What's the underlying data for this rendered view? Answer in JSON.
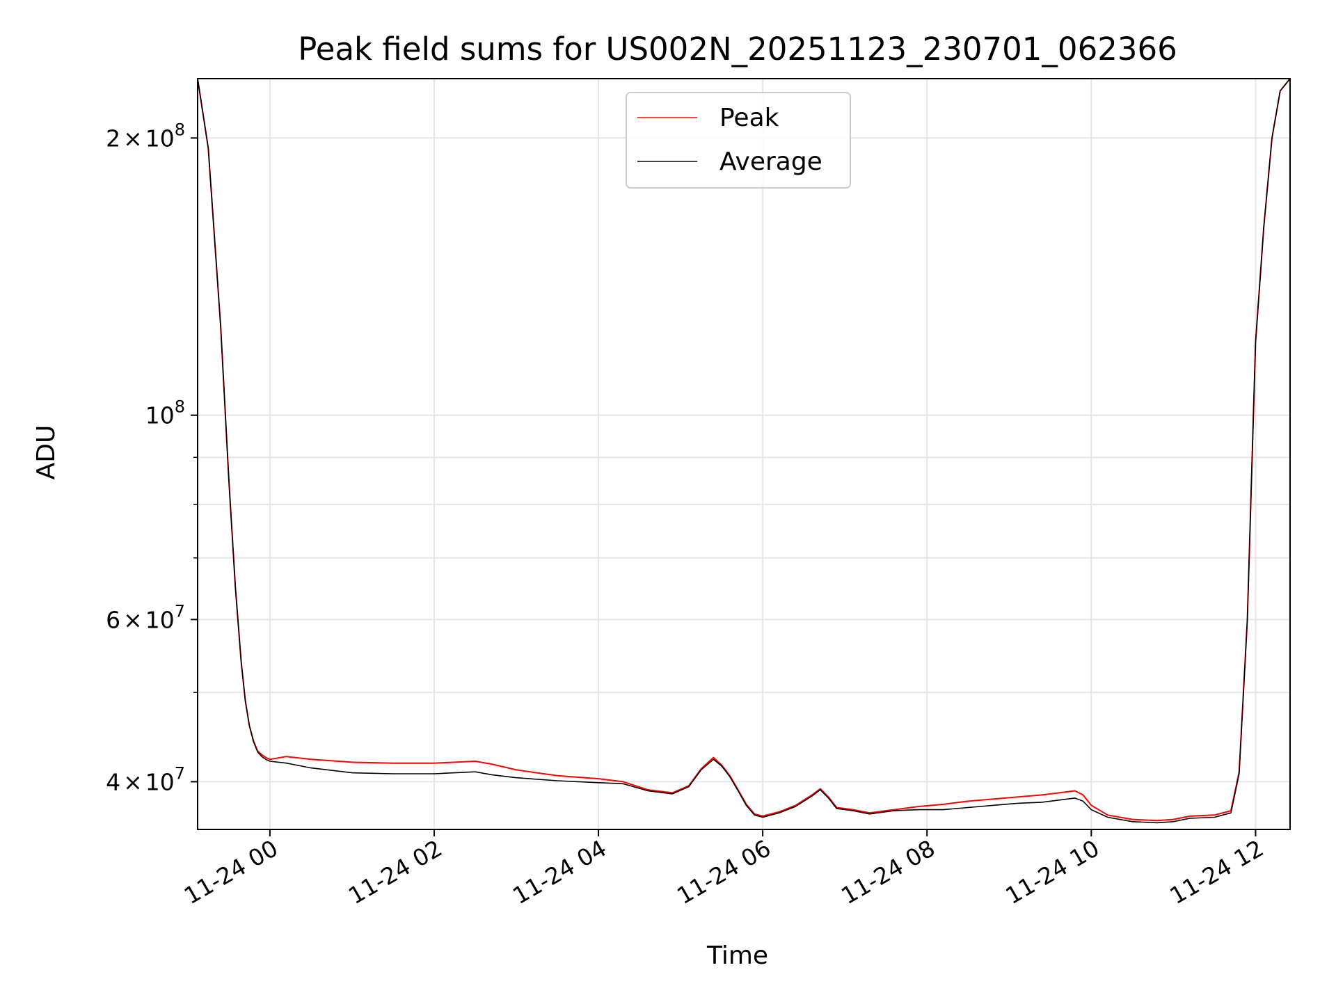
{
  "chart_data": {
    "type": "line",
    "title": "Peak field sums for US002N_20251123_230701_062366",
    "xlabel": "Time",
    "ylabel": "ADU",
    "yscale": "log",
    "grid": true,
    "legend_position": "top-center",
    "x_unit": "hours relative to 11-24 00:00",
    "xlim": [
      -0.88,
      12.42
    ],
    "ylim": [
      35500000,
      232000000
    ],
    "x_ticks": [
      {
        "value": 0,
        "label": "11-24 00"
      },
      {
        "value": 2,
        "label": "11-24 02"
      },
      {
        "value": 4,
        "label": "11-24 04"
      },
      {
        "value": 6,
        "label": "11-24 06"
      },
      {
        "value": 8,
        "label": "11-24 08"
      },
      {
        "value": 10,
        "label": "11-24 10"
      },
      {
        "value": 12,
        "label": "11-24 12"
      }
    ],
    "y_major_ticks": [
      {
        "value": 40000000,
        "mantissa": "4",
        "exponent": "7",
        "times": "×",
        "base": "10"
      },
      {
        "value": 60000000,
        "mantissa": "6",
        "exponent": "7",
        "times": "×",
        "base": "10"
      },
      {
        "value": 100000000,
        "mantissa": "",
        "exponent": "8",
        "times": "",
        "base": "10"
      },
      {
        "value": 200000000,
        "mantissa": "2",
        "exponent": "8",
        "times": "×",
        "base": "10"
      }
    ],
    "y_minor_ticks": [
      50000000,
      70000000,
      80000000,
      90000000
    ],
    "series": [
      {
        "name": "Peak",
        "color": "#ff0000",
        "x": [
          -0.88,
          -0.75,
          -0.6,
          -0.5,
          -0.42,
          -0.35,
          -0.3,
          -0.25,
          -0.2,
          -0.15,
          -0.1,
          -0.05,
          0.0,
          0.2,
          0.5,
          1.0,
          1.5,
          2.0,
          2.5,
          2.7,
          3.0,
          3.5,
          4.0,
          4.3,
          4.6,
          4.9,
          5.1,
          5.25,
          5.4,
          5.5,
          5.6,
          5.7,
          5.8,
          5.9,
          6.0,
          6.2,
          6.4,
          6.6,
          6.7,
          6.8,
          6.9,
          7.1,
          7.3,
          7.6,
          7.9,
          8.2,
          8.5,
          8.8,
          9.1,
          9.4,
          9.7,
          9.8,
          9.9,
          10.0,
          10.2,
          10.5,
          10.8,
          11.0,
          11.2,
          11.5,
          11.7,
          11.8,
          11.9,
          12.0,
          12.1,
          12.2,
          12.3,
          12.42
        ],
        "values": [
          232000000,
          195000000,
          125000000,
          85000000,
          65000000,
          54000000,
          49000000,
          46000000,
          44300000,
          43200000,
          42800000,
          42500000,
          42300000,
          42600000,
          42300000,
          42000000,
          41900000,
          41900000,
          42100000,
          41800000,
          41200000,
          40600000,
          40300000,
          40000000,
          39200000,
          38900000,
          39600000,
          41300000,
          42500000,
          41700000,
          40600000,
          39200000,
          37800000,
          36900000,
          36700000,
          37100000,
          37700000,
          38700000,
          39300000,
          38500000,
          37500000,
          37300000,
          37000000,
          37300000,
          37600000,
          37800000,
          38100000,
          38300000,
          38500000,
          38700000,
          39000000,
          39100000,
          38700000,
          37700000,
          36800000,
          36400000,
          36300000,
          36400000,
          36700000,
          36800000,
          37200000,
          41000000,
          60000000,
          120000000,
          160000000,
          200000000,
          225000000,
          232000000
        ]
      },
      {
        "name": "Average",
        "color": "#000000",
        "x": [
          -0.88,
          -0.75,
          -0.6,
          -0.5,
          -0.42,
          -0.35,
          -0.3,
          -0.25,
          -0.2,
          -0.15,
          -0.1,
          -0.05,
          0.0,
          0.2,
          0.5,
          1.0,
          1.5,
          2.0,
          2.5,
          2.7,
          3.0,
          3.5,
          4.0,
          4.3,
          4.6,
          4.9,
          5.1,
          5.25,
          5.4,
          5.5,
          5.6,
          5.7,
          5.8,
          5.9,
          6.0,
          6.2,
          6.4,
          6.6,
          6.7,
          6.8,
          6.9,
          7.1,
          7.3,
          7.6,
          7.9,
          8.2,
          8.5,
          8.8,
          9.1,
          9.4,
          9.7,
          9.8,
          9.9,
          10.0,
          10.2,
          10.5,
          10.8,
          11.0,
          11.2,
          11.5,
          11.7,
          11.8,
          11.9,
          12.0,
          12.1,
          12.2,
          12.3,
          12.42
        ],
        "values": [
          232000000,
          195000000,
          125000000,
          85000000,
          65000000,
          54000000,
          49000000,
          46000000,
          44200000,
          43100000,
          42600000,
          42300000,
          42100000,
          41900000,
          41400000,
          40900000,
          40800000,
          40800000,
          41000000,
          40700000,
          40400000,
          40100000,
          39900000,
          39800000,
          39100000,
          38800000,
          39500000,
          41200000,
          42300000,
          41600000,
          40500000,
          39100000,
          37700000,
          36800000,
          36600000,
          37000000,
          37600000,
          38600000,
          39200000,
          38400000,
          37400000,
          37200000,
          36900000,
          37200000,
          37300000,
          37300000,
          37500000,
          37700000,
          37900000,
          38000000,
          38300000,
          38400000,
          38100000,
          37300000,
          36600000,
          36200000,
          36100000,
          36200000,
          36500000,
          36600000,
          37000000,
          40800000,
          60000000,
          120000000,
          160000000,
          200000000,
          225000000,
          232000000
        ]
      }
    ]
  }
}
